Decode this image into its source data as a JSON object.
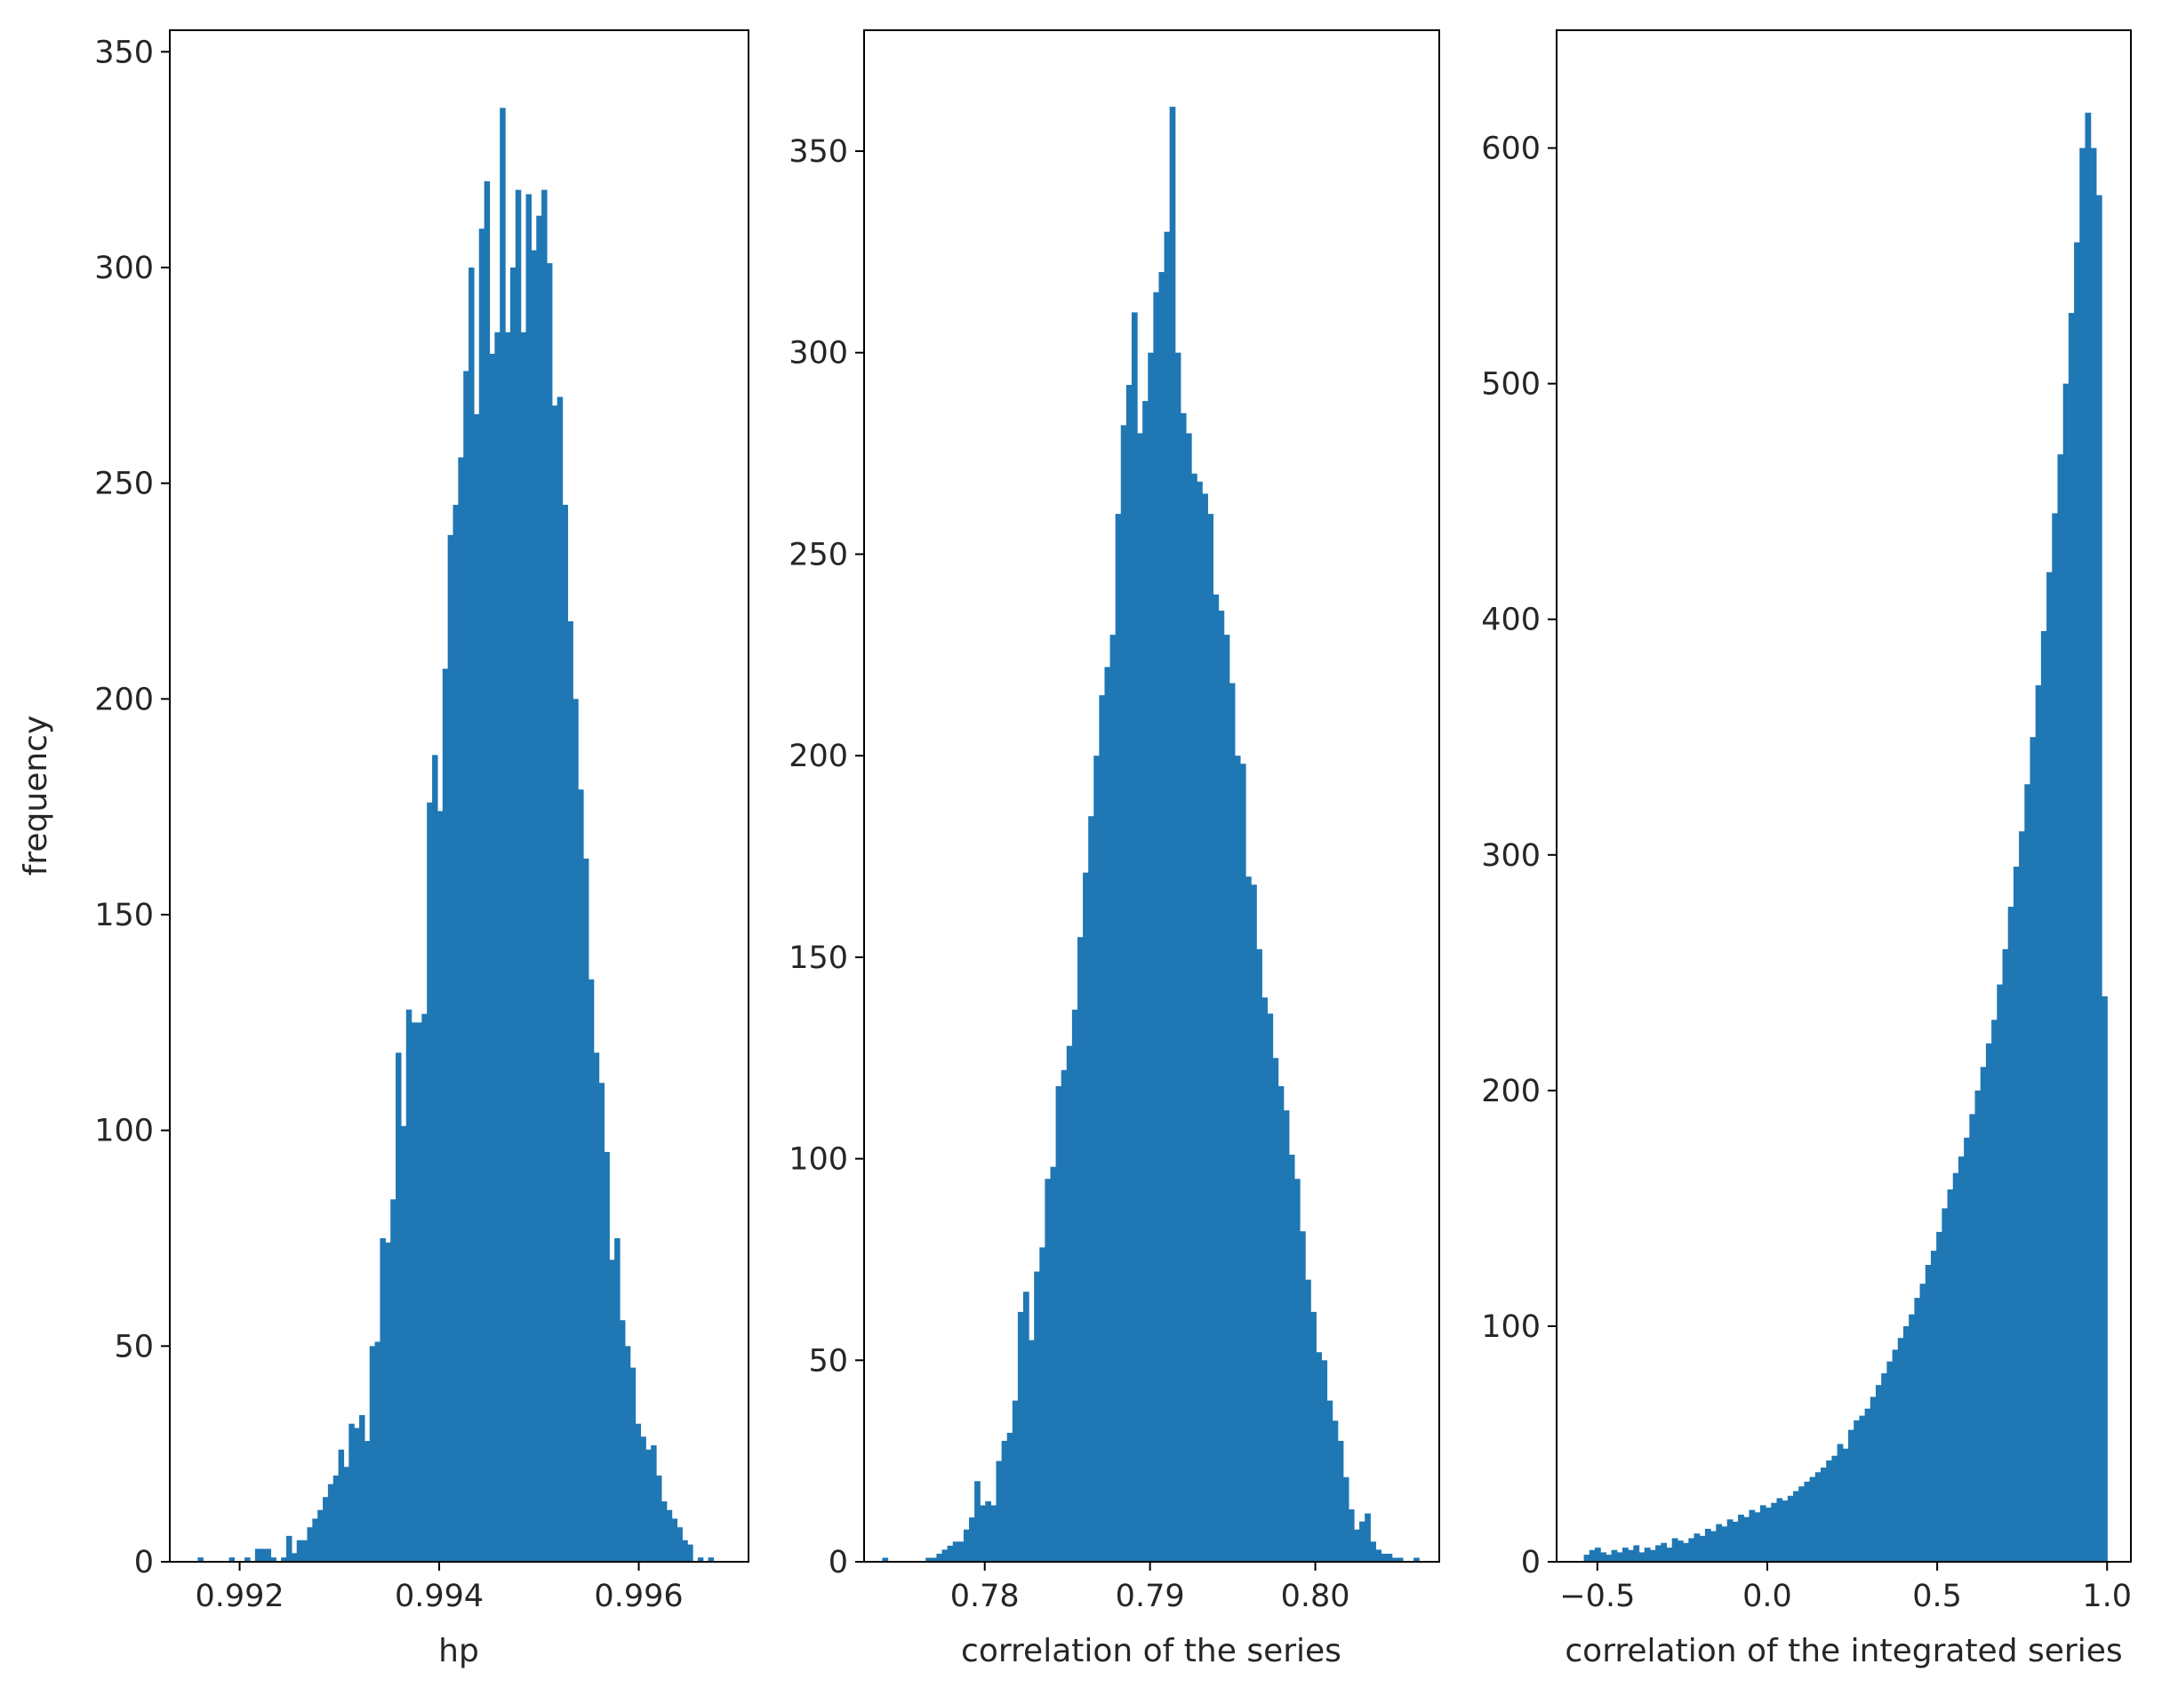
{
  "chart_data": [
    {
      "type": "bar",
      "subtype": "histogram",
      "xlabel": "hp",
      "ylabel": "frequency",
      "xlim": [
        0.9913,
        0.9971
      ],
      "ylim": [
        0,
        355
      ],
      "xticks": [
        0.992,
        0.994,
        0.996
      ],
      "xtick_labels": [
        "0.992",
        "0.994",
        "0.996"
      ],
      "yticks": [
        0,
        50,
        100,
        150,
        200,
        250,
        300,
        350
      ],
      "ytick_labels": [
        "0",
        "50",
        "100",
        "150",
        "200",
        "250",
        "300",
        "350"
      ],
      "bar_color": "#1f77b4",
      "bin_range": [
        0.99158,
        0.9968
      ],
      "values": [
        1,
        0,
        0,
        0,
        0,
        0,
        1,
        0,
        0,
        1,
        0,
        3,
        3,
        3,
        1,
        0,
        1,
        6,
        2,
        5,
        5,
        8,
        10,
        12,
        15,
        18,
        20,
        26,
        22,
        32,
        31,
        34,
        28,
        50,
        51,
        75,
        74,
        84,
        118,
        101,
        128,
        125,
        125,
        127,
        176,
        187,
        174,
        207,
        238,
        245,
        256,
        276,
        300,
        266,
        309,
        320,
        280,
        285,
        337,
        285,
        300,
        318,
        285,
        317,
        304,
        312,
        318,
        301,
        268,
        270,
        245,
        218,
        200,
        179,
        163,
        135,
        118,
        111,
        95,
        70,
        75,
        56,
        50,
        45,
        32,
        29,
        26,
        27,
        20,
        14,
        12,
        10,
        8,
        5,
        4,
        0,
        1,
        0,
        1,
        0
      ]
    },
    {
      "type": "bar",
      "subtype": "histogram",
      "xlabel": "correlation of the series",
      "ylabel": "",
      "xlim": [
        0.7727,
        0.8075
      ],
      "ylim": [
        0,
        380
      ],
      "xticks": [
        0.78,
        0.79,
        0.8
      ],
      "xtick_labels": [
        "0.78",
        "0.79",
        "0.80"
      ],
      "yticks": [
        0,
        50,
        100,
        150,
        200,
        250,
        300,
        350
      ],
      "ytick_labels": [
        "0",
        "50",
        "100",
        "150",
        "200",
        "250",
        "300",
        "350"
      ],
      "bar_color": "#1f77b4",
      "bin_range": [
        0.7738,
        0.8066
      ],
      "values": [
        1,
        0,
        0,
        0,
        0,
        0,
        0,
        0,
        1,
        1,
        2,
        3,
        4,
        5,
        5,
        8,
        11,
        20,
        14,
        15,
        14,
        25,
        30,
        32,
        40,
        62,
        67,
        55,
        72,
        78,
        95,
        98,
        118,
        122,
        128,
        137,
        155,
        171,
        185,
        200,
        215,
        222,
        230,
        260,
        282,
        292,
        310,
        280,
        288,
        300,
        315,
        320,
        330,
        361,
        300,
        285,
        280,
        270,
        268,
        265,
        260,
        240,
        236,
        230,
        218,
        200,
        198,
        170,
        168,
        152,
        140,
        136,
        125,
        118,
        112,
        101,
        95,
        82,
        70,
        62,
        52,
        50,
        40,
        35,
        30,
        21,
        13,
        8,
        10,
        12,
        5,
        3,
        2,
        2,
        1,
        1,
        0,
        0,
        1,
        0
      ]
    },
    {
      "type": "bar",
      "subtype": "histogram",
      "xlabel": "correlation of the integrated series",
      "ylabel": "",
      "xlim": [
        -0.62,
        1.07
      ],
      "ylim": [
        0,
        650
      ],
      "xticks": [
        -0.5,
        0.0,
        0.5,
        1.0
      ],
      "xtick_labels": [
        "−0.5",
        "0.0",
        "0.5",
        "1.0"
      ],
      "yticks": [
        0,
        100,
        200,
        300,
        400,
        500,
        600
      ],
      "ytick_labels": [
        "0",
        "100",
        "200",
        "300",
        "400",
        "500",
        "600"
      ],
      "bar_color": "#1f77b4",
      "bin_range": [
        -0.54,
        1.0
      ],
      "values": [
        3,
        5,
        6,
        4,
        3,
        5,
        4,
        6,
        5,
        7,
        4,
        6,
        5,
        7,
        8,
        6,
        10,
        9,
        8,
        10,
        12,
        11,
        14,
        13,
        16,
        15,
        18,
        17,
        20,
        19,
        22,
        21,
        24,
        23,
        25,
        27,
        26,
        28,
        30,
        32,
        34,
        36,
        38,
        40,
        43,
        45,
        50,
        48,
        56,
        60,
        62,
        65,
        70,
        75,
        80,
        85,
        90,
        95,
        100,
        105,
        112,
        118,
        126,
        132,
        140,
        150,
        158,
        165,
        172,
        180,
        190,
        200,
        210,
        220,
        230,
        245,
        260,
        278,
        295,
        310,
        330,
        350,
        372,
        395,
        420,
        445,
        470,
        500,
        530,
        560,
        600,
        615,
        600,
        580,
        240
      ]
    }
  ]
}
